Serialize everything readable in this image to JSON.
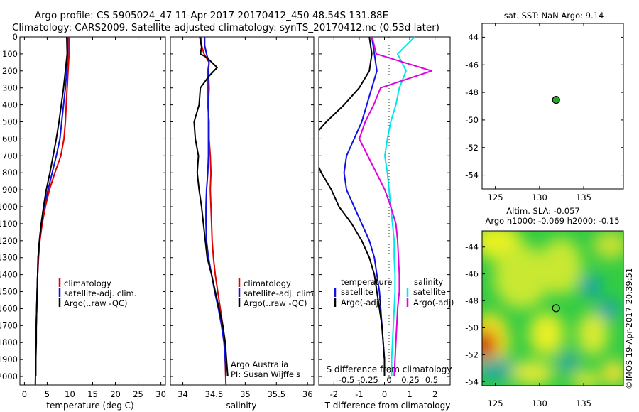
{
  "header": {
    "title_line1": "Argo profile: CS 5905024_47 11-Apr-2017 20170412_450 48.54S 131.88E",
    "title_line2": "Climatology: CARS2009. Satellite-adjusted climatology: synTS_20170412.nc (0.53d later)"
  },
  "colors": {
    "climatology": "#e00000",
    "satellite": "#1010e0",
    "argo": "#000000",
    "sal_satellite": "#00e8e8",
    "sal_argo": "#e000e0",
    "marker": "#22aa22"
  },
  "depth_axis": {
    "range": [
      0,
      2050
    ],
    "ticks": [
      0,
      100,
      200,
      300,
      400,
      500,
      600,
      700,
      800,
      900,
      1000,
      1100,
      1200,
      1300,
      1400,
      1500,
      1600,
      1700,
      1800,
      1900,
      2000
    ]
  },
  "chart_data": [
    {
      "id": "temperature",
      "type": "line",
      "xlabel": "temperature (deg C)",
      "xlim": [
        -1,
        31
      ],
      "xticks": [
        0,
        5,
        10,
        15,
        20,
        25,
        30
      ],
      "xtick_labels": [
        "0",
        "5",
        "10",
        "15",
        "20",
        "25",
        "30"
      ],
      "legend": [
        "climatology",
        "satellite-adj. clim.",
        "Argo(..raw -QC)"
      ],
      "series": [
        {
          "name": "climatology",
          "color": "#e00000",
          "x": [
            9.8,
            9.8,
            9.6,
            9.4,
            9.2,
            9.0,
            8.7,
            8.0,
            6.7,
            5.5,
            4.6,
            3.9,
            3.4,
            3.1,
            2.9,
            2.8,
            2.7,
            2.6,
            2.5,
            2.5,
            2.4
          ],
          "y": [
            0,
            100,
            200,
            300,
            400,
            500,
            600,
            700,
            800,
            900,
            1000,
            1100,
            1200,
            1300,
            1400,
            1500,
            1600,
            1700,
            1800,
            1900,
            2050
          ]
        },
        {
          "name": "satellite-adj. clim.",
          "color": "#1010e0",
          "x": [
            9.5,
            9.5,
            9.3,
            9.0,
            8.6,
            8.2,
            7.8,
            7.0,
            6.1,
            5.2,
            4.3,
            3.7,
            3.3,
            3.0,
            2.9,
            2.8,
            2.7,
            2.6,
            2.5,
            2.5,
            2.4
          ],
          "y": [
            0,
            100,
            200,
            300,
            400,
            500,
            600,
            700,
            800,
            900,
            1000,
            1100,
            1200,
            1300,
            1400,
            1500,
            1600,
            1700,
            1800,
            1900,
            2050
          ]
        },
        {
          "name": "Argo(..raw -QC)",
          "color": "#000000",
          "x": [
            9.3,
            9.4,
            9.0,
            8.6,
            8.1,
            7.6,
            7.0,
            6.3,
            5.6,
            4.8,
            4.2,
            3.7,
            3.3,
            3.0,
            2.9,
            2.8,
            2.7,
            2.6,
            2.6,
            2.5,
            2.5
          ],
          "y": [
            0,
            100,
            200,
            300,
            400,
            500,
            600,
            700,
            800,
            900,
            1000,
            1100,
            1200,
            1300,
            1400,
            1500,
            1600,
            1700,
            1800,
            1900,
            2000
          ]
        }
      ]
    },
    {
      "id": "salinity",
      "type": "line",
      "xlabel": "salinity",
      "xlim": [
        33.8,
        36.1
      ],
      "xticks": [
        34,
        34.5,
        35,
        35.5,
        36
      ],
      "xtick_labels": [
        "34",
        "34.5",
        "35",
        "35.5",
        "36"
      ],
      "legend": [
        "climatology",
        "satellite-adj. clim.",
        "Argo(..raw -QC)"
      ],
      "annotation_line1": "Argo Australia",
      "annotation_line2": "PI: Susan Wijffels",
      "series": [
        {
          "name": "climatology",
          "color": "#e00000",
          "x": [
            34.29,
            34.3,
            34.34,
            34.42,
            34.4,
            34.4,
            34.4,
            34.42,
            34.42,
            34.44,
            34.45,
            34.44,
            34.45,
            34.46,
            34.47,
            34.49,
            34.52,
            34.56,
            34.6,
            34.64,
            34.67,
            34.69
          ],
          "y": [
            0,
            50,
            100,
            150,
            200,
            300,
            400,
            500,
            600,
            700,
            800,
            900,
            1000,
            1100,
            1200,
            1300,
            1400,
            1500,
            1600,
            1700,
            1800,
            2050
          ]
        },
        {
          "name": "satellite-adj. clim.",
          "color": "#1010e0",
          "x": [
            34.35,
            34.35,
            34.38,
            34.42,
            34.41,
            34.42,
            34.41,
            34.41,
            34.41,
            34.41,
            34.4,
            34.38,
            34.37,
            34.37,
            34.38,
            34.41,
            34.46,
            34.51,
            34.57,
            34.62,
            34.66,
            34.68,
            34.69
          ],
          "y": [
            0,
            50,
            100,
            150,
            200,
            300,
            400,
            500,
            600,
            700,
            800,
            900,
            1000,
            1100,
            1200,
            1300,
            1400,
            1500,
            1600,
            1700,
            1800,
            1900,
            2000
          ]
        },
        {
          "name": "Argo(..raw -QC)",
          "color": "#000000",
          "x": [
            34.27,
            34.3,
            34.28,
            34.38,
            34.55,
            34.42,
            34.28,
            34.26,
            34.18,
            34.2,
            34.25,
            34.23,
            34.26,
            34.3,
            34.33,
            34.36,
            34.39,
            34.46,
            34.52,
            34.58,
            34.64,
            34.68,
            34.7,
            34.72
          ],
          "y": [
            0,
            60,
            100,
            120,
            180,
            230,
            300,
            400,
            500,
            600,
            700,
            800,
            900,
            1000,
            1100,
            1200,
            1300,
            1400,
            1500,
            1600,
            1700,
            1800,
            1900,
            2000
          ]
        }
      ]
    },
    {
      "id": "difference",
      "type": "line",
      "xlabel": "T difference from climatology",
      "xlabel_top": "S difference from climatology",
      "xlim": [
        -2.6,
        2.6
      ],
      "xticks": [
        -2,
        -1,
        0,
        1,
        2
      ],
      "xtick_labels": [
        "-2",
        "-1",
        "0",
        "1",
        "2"
      ],
      "s_ticks": [
        -0.5,
        -0.25,
        0,
        0.25,
        0.5
      ],
      "s_tick_labels": [
        "-0.5",
        "-0.25",
        "0",
        "0.25",
        "0.5"
      ],
      "legend_t_heading": "temperature",
      "legend_s_heading": "salinity",
      "legend_t": [
        "satellite",
        "Argo(-adj)"
      ],
      "legend_s": [
        "satellite",
        "Argo(-adj)"
      ],
      "series": [
        {
          "name": "T satellite",
          "color": "#1010e0",
          "x": [
            -0.5,
            -0.4,
            -0.3,
            -0.5,
            -0.7,
            -0.9,
            -1.2,
            -1.5,
            -1.6,
            -1.5,
            -1.2,
            -0.9,
            -0.6,
            -0.4,
            -0.3,
            -0.2,
            -0.15,
            -0.1,
            -0.05,
            0,
            0
          ],
          "y": [
            0,
            100,
            200,
            300,
            400,
            500,
            600,
            700,
            800,
            900,
            1000,
            1100,
            1200,
            1300,
            1400,
            1500,
            1600,
            1700,
            1800,
            1900,
            2000
          ]
        },
        {
          "name": "T Argo(-adj)",
          "color": "#000000",
          "x": [
            -0.6,
            -0.5,
            -0.6,
            -1.0,
            -1.6,
            -2.3,
            -2.9,
            -2.8,
            -2.5,
            -2.1,
            -1.8,
            -1.3,
            -0.9,
            -0.6,
            -0.4,
            -0.3,
            -0.2,
            -0.1,
            -0.05,
            0,
            0
          ],
          "y": [
            0,
            100,
            200,
            300,
            400,
            500,
            600,
            700,
            800,
            900,
            1000,
            1100,
            1200,
            1300,
            1400,
            1500,
            1600,
            1700,
            1800,
            1900,
            2000
          ]
        },
        {
          "name": "S satellite",
          "color": "#00e8e8",
          "x": [
            0.3,
            0.1,
            0.2,
            0.12,
            0.08,
            0.02,
            -0.02,
            -0.05,
            -0.02,
            0.0,
            0.02,
            0.04,
            0.06,
            0.06,
            0.07,
            0.07,
            0.06,
            0.05,
            0.04,
            0.03,
            0.03
          ],
          "y": [
            0,
            100,
            200,
            300,
            400,
            500,
            600,
            700,
            800,
            900,
            1000,
            1100,
            1200,
            1300,
            1400,
            1500,
            1600,
            1700,
            1800,
            1900,
            2000
          ]
        },
        {
          "name": "S Argo(-adj)",
          "color": "#e000e0",
          "x": [
            -0.2,
            -0.15,
            0.5,
            -0.1,
            -0.18,
            -0.28,
            -0.35,
            -0.25,
            -0.15,
            -0.05,
            0.02,
            0.08,
            0.1,
            0.11,
            0.12,
            0.12,
            0.1,
            0.09,
            0.08,
            0.07,
            0.06
          ],
          "y": [
            0,
            100,
            200,
            300,
            400,
            500,
            600,
            700,
            800,
            900,
            1000,
            1100,
            1200,
            1300,
            1400,
            1500,
            1600,
            1700,
            1800,
            1900,
            2000
          ]
        }
      ]
    },
    {
      "id": "location",
      "type": "scatter",
      "title": "sat. SST: NaN Argo: 9.14",
      "xlim": [
        123.5,
        139.5
      ],
      "ylim": [
        -55,
        -43
      ],
      "xticks": [
        125,
        130,
        135
      ],
      "yticks": [
        -44,
        -46,
        -48,
        -50,
        -52,
        -54
      ],
      "points": [
        {
          "x": 131.88,
          "y": -48.54
        }
      ]
    },
    {
      "id": "sla_map",
      "type": "heatmap",
      "title_line1": "Altim. SLA: -0.057",
      "title_line2": "Argo h1000: -0.069 h2000: -0.15",
      "xlim": [
        123.5,
        139.5
      ],
      "ylim": [
        -54.3,
        -42.8
      ],
      "xticks": [
        125,
        130,
        135
      ],
      "yticks": [
        -44,
        -46,
        -48,
        -50,
        -52,
        -54
      ],
      "points": [
        {
          "x": 131.88,
          "y": -48.54
        }
      ],
      "credit": "©IMOS 19-Apr-2017 20:39:51"
    }
  ]
}
